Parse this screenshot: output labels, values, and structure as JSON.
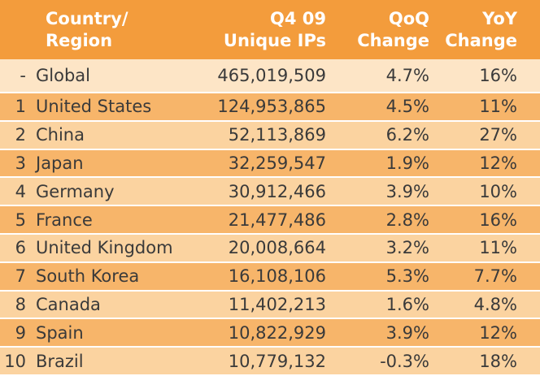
{
  "header": {
    "country_line1": "Country/",
    "country_line2": "Region",
    "ips_line1": "Q4 09",
    "ips_line2": "Unique IPs",
    "qoq_line1": "QoQ",
    "qoq_line2": "Change",
    "yoy_line1": "YoY",
    "yoy_line2": "Change"
  },
  "rows": [
    {
      "rank": "-",
      "name": "Global",
      "ips": "465,019,509",
      "qoq": "4.7%",
      "yoy": "16%"
    },
    {
      "rank": "1",
      "name": "United States",
      "ips": "124,953,865",
      "qoq": "4.5%",
      "yoy": "11%"
    },
    {
      "rank": "2",
      "name": "China",
      "ips": "52,113,869",
      "qoq": "6.2%",
      "yoy": "27%"
    },
    {
      "rank": "3",
      "name": "Japan",
      "ips": "32,259,547",
      "qoq": "1.9%",
      "yoy": "12%"
    },
    {
      "rank": "4",
      "name": "Germany",
      "ips": "30,912,466",
      "qoq": "3.9%",
      "yoy": "10%"
    },
    {
      "rank": "5",
      "name": "France",
      "ips": "21,477,486",
      "qoq": "2.8%",
      "yoy": "16%"
    },
    {
      "rank": "6",
      "name": "United Kingdom",
      "ips": "20,008,664",
      "qoq": "3.2%",
      "yoy": "11%"
    },
    {
      "rank": "7",
      "name": "South Korea",
      "ips": "16,108,106",
      "qoq": "5.3%",
      "yoy": "7.7%"
    },
    {
      "rank": "8",
      "name": "Canada",
      "ips": "11,402,213",
      "qoq": "1.6%",
      "yoy": "4.8%"
    },
    {
      "rank": "9",
      "name": "Spain",
      "ips": "10,822,929",
      "qoq": "3.9%",
      "yoy": "12%"
    },
    {
      "rank": "10",
      "name": "Brazil",
      "ips": "10,779,132",
      "qoq": "-0.3%",
      "yoy": "18%"
    }
  ],
  "colors": {
    "header_bg": "#f39c3c",
    "row_light": "#fbd3a0",
    "row_dark": "#f7b56a",
    "row_first": "#fde5c6"
  }
}
